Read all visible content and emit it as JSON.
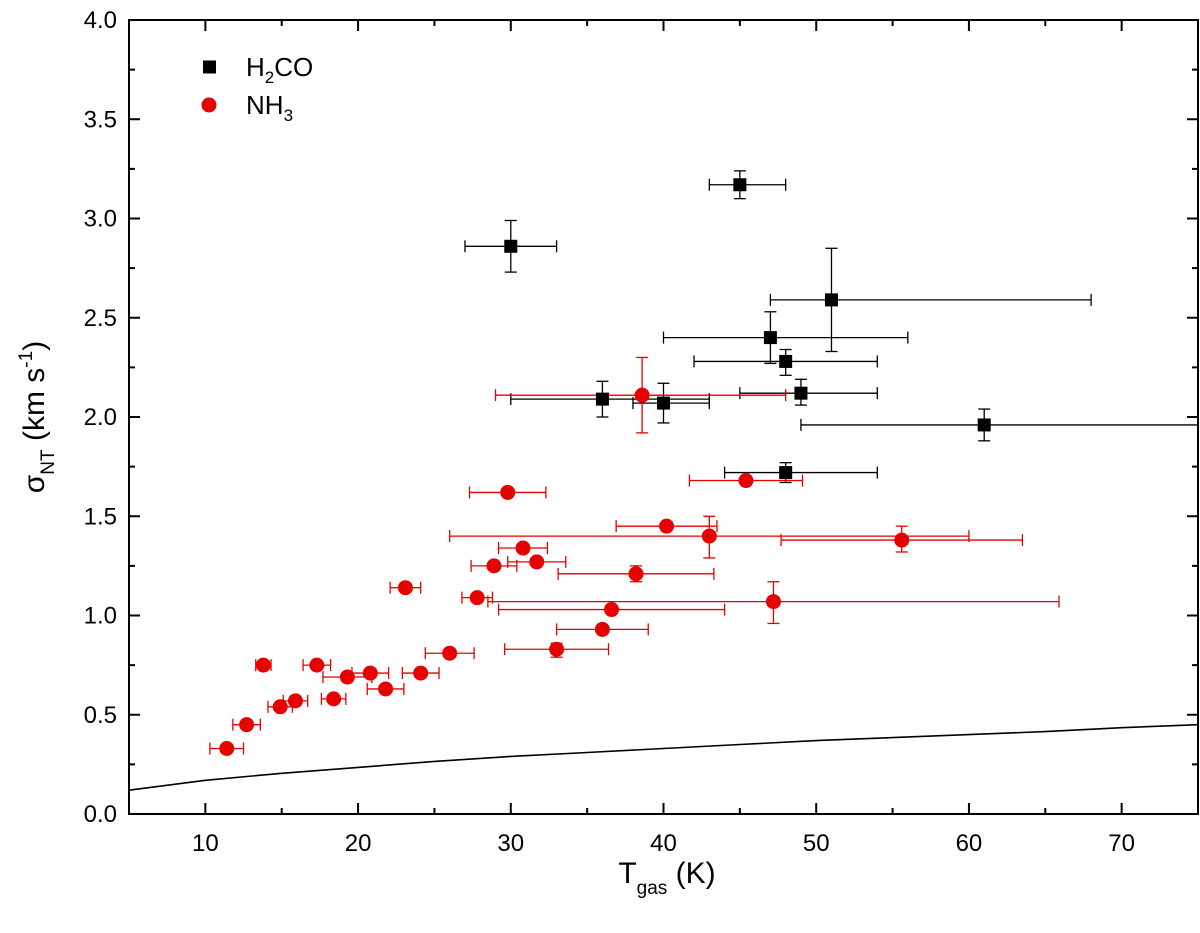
{
  "chart_data": {
    "type": "scatter",
    "xlim": [
      5,
      75
    ],
    "ylim": [
      0.0,
      4.0
    ],
    "xticks": [
      10,
      20,
      30,
      40,
      50,
      60,
      70
    ],
    "yticks": [
      0.0,
      0.5,
      1.0,
      1.5,
      2.0,
      2.5,
      3.0,
      3.5,
      4.0
    ],
    "ytick_labels": [
      "0.0",
      "0.5",
      "1.0",
      "1.5",
      "2.0",
      "2.5",
      "3.0",
      "3.5",
      "4.0"
    ],
    "xlabel": {
      "main": "T",
      "sub": "gas",
      "unit": " (K)"
    },
    "ylabel": {
      "main": "σ",
      "sub": "NT",
      "unit": " (km s",
      "sup": "-1",
      "close": ")"
    },
    "legend": {
      "placement": "top-left",
      "items": [
        {
          "main": "H",
          "sub": "2",
          "rest": "CO",
          "marker": "square",
          "color": "#000000"
        },
        {
          "main": "NH",
          "sub": "3",
          "rest": "",
          "marker": "circle",
          "color": "#e60000"
        }
      ]
    },
    "series": [
      {
        "name": "H2CO",
        "marker": "square",
        "color": "#000000",
        "points": [
          {
            "x": 45,
            "y": 3.17,
            "xerr": [
              43,
              48
            ],
            "yerr": [
              3.1,
              3.24
            ]
          },
          {
            "x": 30,
            "y": 2.86,
            "xerr": [
              27,
              33
            ],
            "yerr": [
              2.73,
              2.99
            ]
          },
          {
            "x": 51,
            "y": 2.59,
            "xerr": [
              47,
              68
            ],
            "yerr": [
              2.33,
              2.85
            ]
          },
          {
            "x": 47,
            "y": 2.4,
            "xerr": [
              40,
              56
            ],
            "yerr": [
              2.27,
              2.53
            ]
          },
          {
            "x": 48,
            "y": 2.28,
            "xerr": [
              42,
              54
            ],
            "yerr": [
              2.21,
              2.34
            ]
          },
          {
            "x": 49,
            "y": 2.12,
            "xerr": [
              45,
              54
            ],
            "yerr": [
              2.06,
              2.19
            ]
          },
          {
            "x": 36,
            "y": 2.09,
            "xerr": [
              30,
              43
            ],
            "yerr": [
              2.0,
              2.18
            ]
          },
          {
            "x": 40,
            "y": 2.07,
            "xerr": [
              38,
              43
            ],
            "yerr": [
              1.97,
              2.17
            ]
          },
          {
            "x": 61,
            "y": 1.96,
            "xerr": [
              49,
              75
            ],
            "yerr": [
              1.88,
              2.04
            ]
          },
          {
            "x": 48,
            "y": 1.72,
            "xerr": [
              44,
              54
            ],
            "yerr": [
              1.67,
              1.77
            ]
          }
        ]
      },
      {
        "name": "NH3",
        "marker": "circle",
        "color": "#e60000",
        "points": [
          {
            "x": 38.6,
            "y": 2.11,
            "xerr": [
              29,
              48
            ],
            "yerr": [
              1.92,
              2.3
            ]
          },
          {
            "x": 45.4,
            "y": 1.68,
            "xerr": [
              41.7,
              49.1
            ],
            "yerr": [
              1.66,
              1.7
            ]
          },
          {
            "x": 29.8,
            "y": 1.62,
            "xerr": [
              27.3,
              32.3
            ],
            "yerr": [
              1.61,
              1.63
            ]
          },
          {
            "x": 40.2,
            "y": 1.45,
            "xerr": [
              36.9,
              43.5
            ],
            "yerr": [
              1.43,
              1.47
            ]
          },
          {
            "x": 43,
            "y": 1.4,
            "xerr": [
              26,
              60
            ],
            "yerr": [
              1.29,
              1.5
            ]
          },
          {
            "x": 55.6,
            "y": 1.38,
            "xerr": [
              47.7,
              63.5
            ],
            "yerr": [
              1.32,
              1.45
            ]
          },
          {
            "x": 30.8,
            "y": 1.34,
            "xerr": [
              29.2,
              32.4
            ],
            "yerr": [
              1.32,
              1.36
            ]
          },
          {
            "x": 31.7,
            "y": 1.27,
            "xerr": [
              29.8,
              33.6
            ],
            "yerr": [
              1.25,
              1.29
            ]
          },
          {
            "x": 28.9,
            "y": 1.25,
            "xerr": [
              27.4,
              30.4
            ],
            "yerr": [
              1.23,
              1.27
            ]
          },
          {
            "x": 38.2,
            "y": 1.21,
            "xerr": [
              33.1,
              43.3
            ],
            "yerr": [
              1.17,
              1.25
            ]
          },
          {
            "x": 23.1,
            "y": 1.14,
            "xerr": [
              22.1,
              24.1
            ],
            "yerr": [
              1.13,
              1.15
            ]
          },
          {
            "x": 27.8,
            "y": 1.09,
            "xerr": [
              26.8,
              28.8
            ],
            "yerr": [
              1.07,
              1.11
            ]
          },
          {
            "x": 47.2,
            "y": 1.07,
            "xerr": [
              28.5,
              65.9
            ],
            "yerr": [
              0.96,
              1.17
            ]
          },
          {
            "x": 36.6,
            "y": 1.03,
            "xerr": [
              29.2,
              44.0
            ],
            "yerr": [
              1.01,
              1.05
            ]
          },
          {
            "x": 36,
            "y": 0.93,
            "xerr": [
              33.0,
              39.0
            ],
            "yerr": [
              0.91,
              0.95
            ]
          },
          {
            "x": 33,
            "y": 0.83,
            "xerr": [
              29.6,
              36.4
            ],
            "yerr": [
              0.79,
              0.86
            ]
          },
          {
            "x": 26,
            "y": 0.81,
            "xerr": [
              24.4,
              27.6
            ],
            "yerr": [
              0.79,
              0.83
            ]
          },
          {
            "x": 13.8,
            "y": 0.75,
            "xerr": [
              13.3,
              14.3
            ],
            "yerr": [
              0.74,
              0.76
            ]
          },
          {
            "x": 17.3,
            "y": 0.75,
            "xerr": [
              16.4,
              18.2
            ],
            "yerr": [
              0.74,
              0.76
            ]
          },
          {
            "x": 20.8,
            "y": 0.71,
            "xerr": [
              19.6,
              22.0
            ],
            "yerr": [
              0.7,
              0.72
            ]
          },
          {
            "x": 24.1,
            "y": 0.71,
            "xerr": [
              22.9,
              25.3
            ],
            "yerr": [
              0.7,
              0.72
            ]
          },
          {
            "x": 19.3,
            "y": 0.69,
            "xerr": [
              17.7,
              20.9
            ],
            "yerr": [
              0.68,
              0.7
            ]
          },
          {
            "x": 21.8,
            "y": 0.63,
            "xerr": [
              20.6,
              23.0
            ],
            "yerr": [
              0.62,
              0.64
            ]
          },
          {
            "x": 18.4,
            "y": 0.58,
            "xerr": [
              17.6,
              19.2
            ],
            "yerr": [
              0.57,
              0.59
            ]
          },
          {
            "x": 15.9,
            "y": 0.57,
            "xerr": [
              15.1,
              16.7
            ],
            "yerr": [
              0.56,
              0.58
            ]
          },
          {
            "x": 14.9,
            "y": 0.54,
            "xerr": [
              14.1,
              15.7
            ],
            "yerr": [
              0.53,
              0.55
            ]
          },
          {
            "x": 12.7,
            "y": 0.45,
            "xerr": [
              11.8,
              13.6
            ],
            "yerr": [
              0.44,
              0.46
            ]
          },
          {
            "x": 11.4,
            "y": 0.33,
            "xerr": [
              10.3,
              12.5
            ],
            "yerr": [
              0.32,
              0.34
            ]
          }
        ]
      }
    ],
    "thermal_curve": {
      "color": "#000000",
      "points": [
        [
          5,
          0.12
        ],
        [
          10,
          0.17
        ],
        [
          15,
          0.205
        ],
        [
          20,
          0.235
        ],
        [
          25,
          0.265
        ],
        [
          30,
          0.29
        ],
        [
          35,
          0.31
        ],
        [
          40,
          0.33
        ],
        [
          45,
          0.35
        ],
        [
          50,
          0.37
        ],
        [
          55,
          0.385
        ],
        [
          60,
          0.4
        ],
        [
          65,
          0.415
        ],
        [
          70,
          0.435
        ],
        [
          75,
          0.45
        ]
      ]
    }
  }
}
